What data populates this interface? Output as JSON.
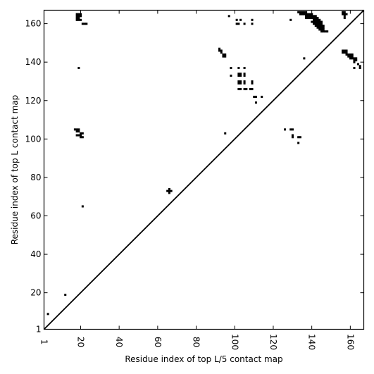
{
  "chart_data": {
    "type": "heatmap",
    "title": "",
    "xlabel": "Residue index of top L/5 contact map",
    "ylabel": "Residue index of top L contact map",
    "xlim": [
      1,
      167
    ],
    "ylim": [
      1,
      167
    ],
    "x_ticks": [
      1,
      20,
      40,
      60,
      80,
      100,
      120,
      140,
      160
    ],
    "y_ticks": [
      1,
      20,
      40,
      60,
      80,
      100,
      120,
      140,
      160
    ],
    "x_tick_rotation": -90,
    "grid": false,
    "diagonal": {
      "from": [
        1,
        1
      ],
      "to": [
        167,
        167
      ]
    },
    "contact_color": "#000000",
    "contacts": [
      [
        18,
        165
      ],
      [
        19,
        165
      ],
      [
        20,
        165
      ],
      [
        18,
        164
      ],
      [
        19,
        164
      ],
      [
        20,
        164
      ],
      [
        18,
        163
      ],
      [
        19,
        163
      ],
      [
        18,
        162
      ],
      [
        19,
        162
      ],
      [
        20,
        162
      ],
      [
        21,
        160
      ],
      [
        22,
        160
      ],
      [
        23,
        160
      ],
      [
        97,
        164
      ],
      [
        101,
        162
      ],
      [
        103,
        162
      ],
      [
        109,
        162
      ],
      [
        101,
        160
      ],
      [
        102,
        160
      ],
      [
        105,
        160
      ],
      [
        109,
        160
      ],
      [
        129,
        162
      ],
      [
        133,
        166
      ],
      [
        134,
        166
      ],
      [
        135,
        166
      ],
      [
        136,
        166
      ],
      [
        137,
        166
      ],
      [
        134,
        165
      ],
      [
        135,
        165
      ],
      [
        136,
        165
      ],
      [
        137,
        165
      ],
      [
        138,
        165
      ],
      [
        139,
        165
      ],
      [
        140,
        165
      ],
      [
        137,
        164
      ],
      [
        138,
        164
      ],
      [
        139,
        164
      ],
      [
        140,
        164
      ],
      [
        141,
        164
      ],
      [
        142,
        164
      ],
      [
        137,
        163
      ],
      [
        138,
        163
      ],
      [
        139,
        163
      ],
      [
        140,
        163
      ],
      [
        141,
        163
      ],
      [
        142,
        163
      ],
      [
        143,
        163
      ],
      [
        141,
        162
      ],
      [
        142,
        162
      ],
      [
        143,
        162
      ],
      [
        144,
        162
      ],
      [
        140,
        161
      ],
      [
        141,
        161
      ],
      [
        142,
        161
      ],
      [
        143,
        161
      ],
      [
        144,
        161
      ],
      [
        145,
        161
      ],
      [
        141,
        160
      ],
      [
        142,
        160
      ],
      [
        143,
        160
      ],
      [
        144,
        160
      ],
      [
        145,
        160
      ],
      [
        142,
        159
      ],
      [
        143,
        159
      ],
      [
        144,
        159
      ],
      [
        145,
        159
      ],
      [
        146,
        159
      ],
      [
        143,
        158
      ],
      [
        144,
        158
      ],
      [
        145,
        158
      ],
      [
        146,
        158
      ],
      [
        144,
        157
      ],
      [
        145,
        157
      ],
      [
        146,
        157
      ],
      [
        145,
        156
      ],
      [
        146,
        156
      ],
      [
        147,
        156
      ],
      [
        148,
        156
      ],
      [
        156,
        166
      ],
      [
        157,
        166
      ],
      [
        156,
        165
      ],
      [
        157,
        165
      ],
      [
        158,
        165
      ],
      [
        157,
        164
      ],
      [
        157,
        163
      ],
      [
        92,
        147
      ],
      [
        92,
        146
      ],
      [
        93,
        146
      ],
      [
        93,
        145
      ],
      [
        94,
        144
      ],
      [
        95,
        144
      ],
      [
        94,
        143
      ],
      [
        95,
        143
      ],
      [
        136,
        142
      ],
      [
        19,
        137
      ],
      [
        156,
        146
      ],
      [
        157,
        146
      ],
      [
        158,
        146
      ],
      [
        156,
        145
      ],
      [
        157,
        145
      ],
      [
        158,
        145
      ],
      [
        158,
        144
      ],
      [
        159,
        144
      ],
      [
        160,
        144
      ],
      [
        161,
        144
      ],
      [
        159,
        143
      ],
      [
        160,
        143
      ],
      [
        161,
        143
      ],
      [
        160,
        142
      ],
      [
        161,
        142
      ],
      [
        162,
        142
      ],
      [
        163,
        142
      ],
      [
        162,
        141
      ],
      [
        163,
        141
      ],
      [
        162,
        140
      ],
      [
        164,
        139
      ],
      [
        165,
        138
      ],
      [
        162,
        137
      ],
      [
        165,
        137
      ],
      [
        98,
        137
      ],
      [
        102,
        137
      ],
      [
        105,
        137
      ],
      [
        102,
        134
      ],
      [
        103,
        134
      ],
      [
        105,
        134
      ],
      [
        98,
        133
      ],
      [
        102,
        133
      ],
      [
        103,
        133
      ],
      [
        105,
        133
      ],
      [
        102,
        130
      ],
      [
        103,
        130
      ],
      [
        105,
        130
      ],
      [
        109,
        130
      ],
      [
        102,
        129
      ],
      [
        103,
        129
      ],
      [
        105,
        129
      ],
      [
        109,
        129
      ],
      [
        102,
        126
      ],
      [
        103,
        126
      ],
      [
        105,
        126
      ],
      [
        106,
        126
      ],
      [
        108,
        126
      ],
      [
        109,
        126
      ],
      [
        110,
        122
      ],
      [
        111,
        122
      ],
      [
        114,
        122
      ],
      [
        111,
        119
      ],
      [
        17,
        105
      ],
      [
        18,
        105
      ],
      [
        19,
        105
      ],
      [
        18,
        104
      ],
      [
        19,
        104
      ],
      [
        18,
        102
      ],
      [
        19,
        102
      ],
      [
        20,
        102
      ],
      [
        20,
        103
      ],
      [
        20,
        101
      ],
      [
        21,
        101
      ],
      [
        21,
        103
      ],
      [
        95,
        103
      ],
      [
        126,
        105
      ],
      [
        129,
        105
      ],
      [
        130,
        105
      ],
      [
        130,
        102
      ],
      [
        130,
        101
      ],
      [
        133,
        101
      ],
      [
        134,
        101
      ],
      [
        133,
        98
      ],
      [
        66,
        74
      ],
      [
        65,
        73
      ],
      [
        66,
        73
      ],
      [
        67,
        73
      ],
      [
        66,
        72
      ],
      [
        21,
        65
      ],
      [
        12,
        19
      ],
      [
        3,
        9
      ]
    ]
  }
}
